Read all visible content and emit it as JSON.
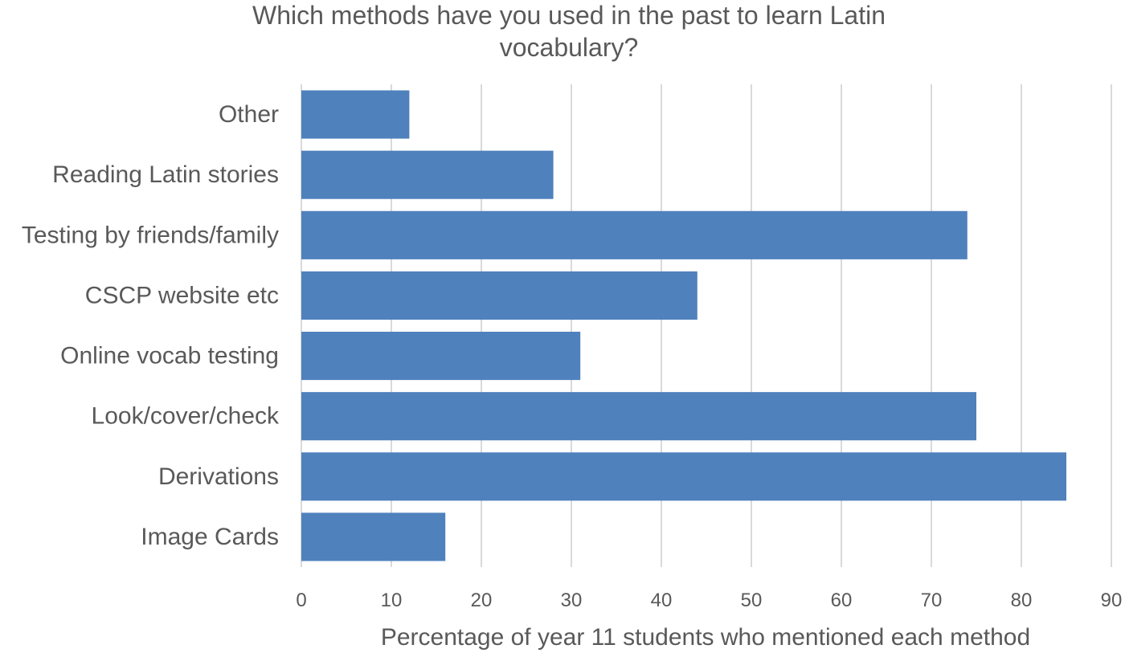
{
  "chart_data": {
    "type": "bar",
    "orientation": "horizontal",
    "title": "Which methods have you used in the past to learn Latin vocabulary?",
    "title_lines": [
      "Which methods have you used in the past to learn Latin",
      "vocabulary?"
    ],
    "categories": [
      "Image Cards",
      "Derivations",
      "Look/cover/check",
      "Online vocab testing",
      "CSCP website etc",
      "Testing by friends/family",
      "Reading Latin stories",
      "Other"
    ],
    "values": [
      16,
      85,
      75,
      31,
      44,
      74,
      28,
      12
    ],
    "xlabel": "Percentage of year 11 students who mentioned each method",
    "ylabel": "",
    "xlim": [
      0,
      90
    ],
    "xticks": [
      "0",
      "10",
      "20",
      "30",
      "40",
      "50",
      "60",
      "70",
      "80",
      "90"
    ],
    "grid": "vertical",
    "legend": "none",
    "bar_color": "#4F81BD",
    "grid_color": "#D9D9D9",
    "text_color": "#595959"
  }
}
